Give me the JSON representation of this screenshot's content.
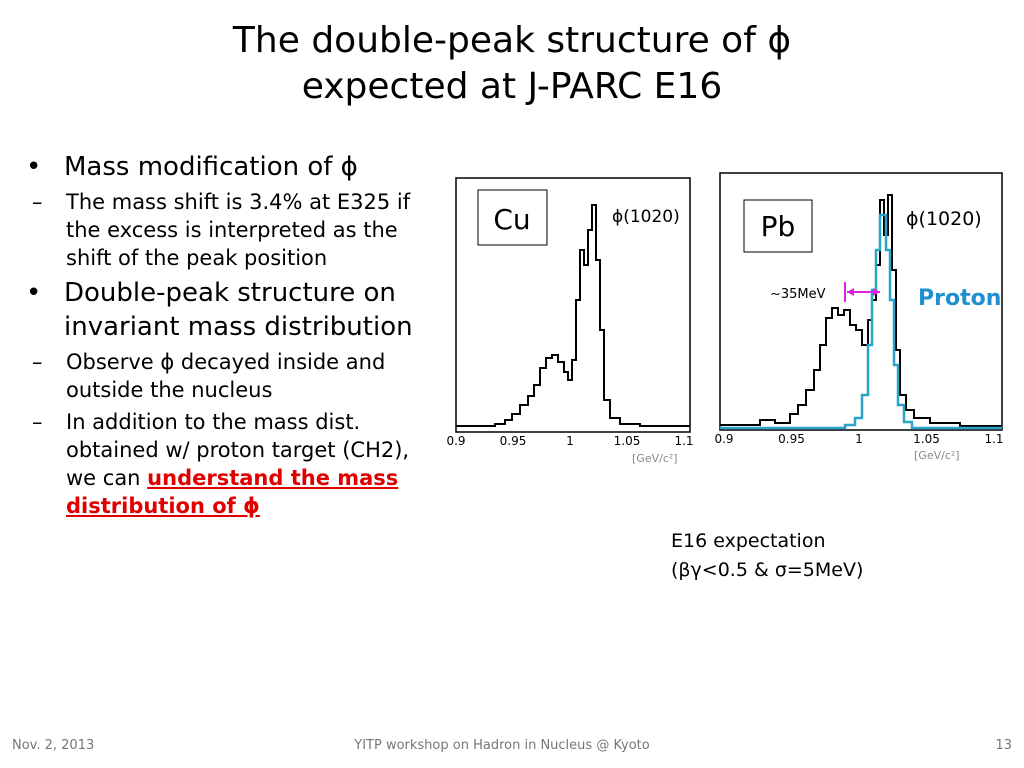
{
  "title": [
    "The double-peak structure of ϕ",
    "expected at J-PARC E16"
  ],
  "bullets": [
    {
      "text": "Mass modification of ϕ",
      "sub": [
        {
          "text": "The mass shift is 3.4% at E325 if the excess is interpreted as the shift of the peak position"
        }
      ]
    },
    {
      "text": "Double-peak structure on invariant mass distribution",
      "sub": [
        {
          "text": "Observe ϕ decayed inside and outside the nucleus"
        },
        {
          "text": "In addition to  the mass dist. obtained w/ proton target (CH2), we can ",
          "emphasis": "understand the mass distribution of ϕ"
        }
      ]
    }
  ],
  "plots": [
    {
      "label": "Cu",
      "peak_label": "ϕ(1020)",
      "ticks": [
        "0.9",
        "0.95",
        "1",
        "1.05",
        "1.1"
      ],
      "unit": "[GeV/c²]"
    },
    {
      "label": "Pb",
      "peak_label": "ϕ(1020)",
      "ticks": [
        "0.9",
        "0.95",
        "1",
        "1.05",
        "1.1"
      ],
      "unit": "[GeV/c²]",
      "shift_label": "~35MeV",
      "overlay_label": "Proton"
    }
  ],
  "caption": [
    "E16 expectation",
    "(βγ<0.5 & σ=5MeV)"
  ],
  "footer": {
    "date": "Nov. 2, 2013",
    "event": "YITP workshop on  Hadron in Nucleus @ Kyoto",
    "page": "13"
  }
}
